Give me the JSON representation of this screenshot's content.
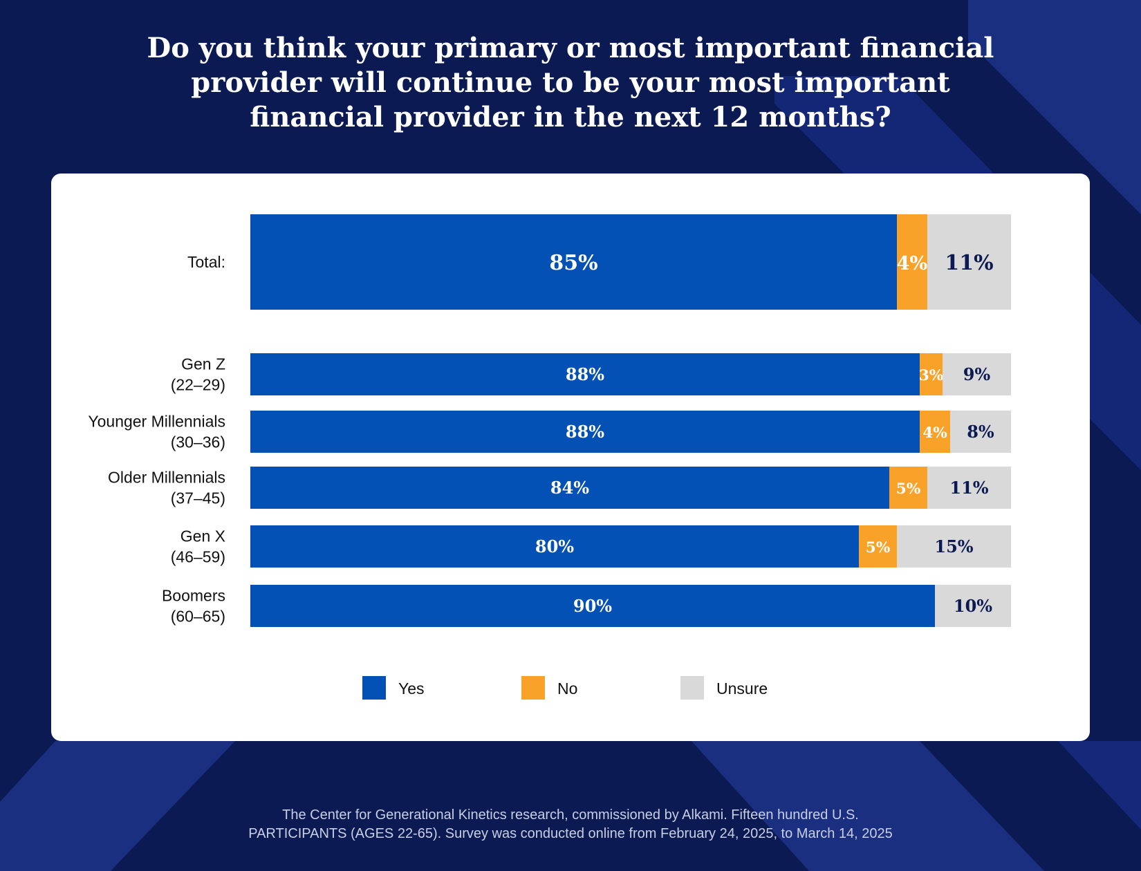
{
  "title_lines": [
    "Do you think your primary or most important financial",
    "provider will continue to be your most important",
    "financial provider in the next 12 months?"
  ],
  "colors": {
    "background": "#0b1a52",
    "background_stripe": "#1b2f80",
    "yes": "#0451b5",
    "no": "#f9a229",
    "unsure": "#d9d9d9",
    "value_on_yes": "#ffffff",
    "value_on_no": "#ffffff",
    "value_on_unsure": "#0b1a52"
  },
  "chart_data": {
    "type": "bar",
    "orientation": "horizontal",
    "stacked": true,
    "title": "Do you think your primary or most important financial provider will continue to be your most important financial provider in the next 12 months?",
    "categories": [
      [
        "Total:"
      ],
      [
        "Gen Z",
        "(22–29)"
      ],
      [
        "Younger Millennials",
        "(30–36)"
      ],
      [
        "Older Millennials",
        "(37–45)"
      ],
      [
        "Gen X",
        "(46–59)"
      ],
      [
        "Boomers",
        "(60–65)"
      ]
    ],
    "series": [
      {
        "name": "Yes",
        "values": [
          85,
          88,
          88,
          84,
          80,
          90
        ],
        "labels": [
          "85%",
          "88%",
          "88%",
          "84%",
          "80%",
          "90%"
        ]
      },
      {
        "name": "No",
        "values": [
          4,
          3,
          4,
          5,
          5,
          0
        ],
        "labels": [
          "4%",
          "3%",
          "4%",
          "5%",
          "5%",
          ""
        ]
      },
      {
        "name": "Unsure",
        "values": [
          11,
          9,
          8,
          11,
          15,
          10
        ],
        "labels": [
          "11%",
          "9%",
          "8%",
          "11%",
          "15%",
          "10%"
        ]
      }
    ],
    "xlim": [
      0,
      100
    ],
    "legend_position": "bottom",
    "grid": false
  },
  "footer_lines": [
    "The Center for Generational Kinetics research, commissioned by Alkami. Fifteen hundred U.S.",
    "PARTICIPANTS (AGES 22-65). Survey was conducted online from February 24, 2025, to March 14, 2025"
  ]
}
